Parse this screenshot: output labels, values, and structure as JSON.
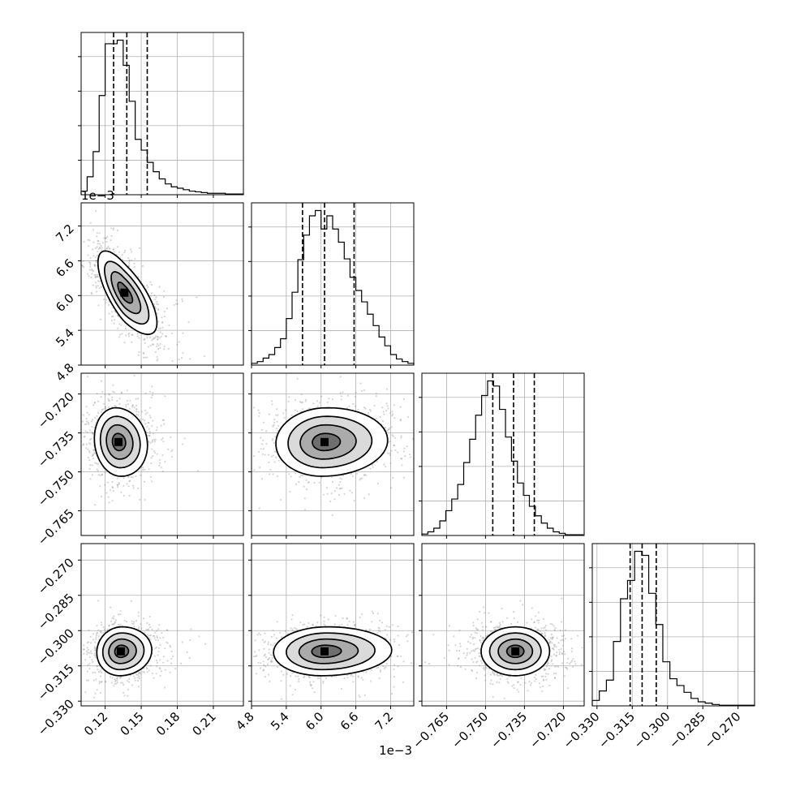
{
  "chart_data": {
    "type": "corner",
    "grid": true,
    "params": [
      {
        "index": 0,
        "range": [
          0.1,
          0.235
        ],
        "ticks": [
          0.12,
          0.15,
          0.18,
          0.21
        ],
        "tick_labels": [
          "0.12",
          "0.15",
          "0.18",
          "0.21"
        ],
        "quantiles": [
          0.127,
          0.138,
          0.155
        ],
        "offset_label": ""
      },
      {
        "index": 1,
        "range": [
          4.8,
          7.6
        ],
        "ticks": [
          4.8,
          5.4,
          6.0,
          6.6,
          7.2
        ],
        "tick_labels": [
          "4.8",
          "5.4",
          "6.0",
          "6.6",
          "7.2"
        ],
        "quantiles": [
          5.68,
          6.06,
          6.57
        ],
        "offset_label": "1e−3"
      },
      {
        "index": 2,
        "range": [
          -0.7745,
          -0.712
        ],
        "ticks": [
          -0.765,
          -0.75,
          -0.735,
          -0.72
        ],
        "tick_labels": [
          "−0.765",
          "−0.750",
          "−0.735",
          "−0.720"
        ],
        "quantiles": [
          -0.7472,
          -0.7392,
          -0.7312
        ],
        "offset_label": ""
      },
      {
        "index": 3,
        "range": [
          -0.332,
          -0.263
        ],
        "ticks": [
          -0.33,
          -0.315,
          -0.3,
          -0.285,
          -0.27
        ],
        "tick_labels": [
          "−0.330",
          "−0.315",
          "−0.300",
          "−0.285",
          "−0.270"
        ],
        "quantiles": [
          -0.3159,
          -0.3108,
          -0.3048
        ],
        "offset_label": ""
      }
    ],
    "histograms": [
      {
        "param": 0,
        "bin_edges": [
          0.1,
          0.105,
          0.11,
          0.115,
          0.12,
          0.125,
          0.13,
          0.135,
          0.14,
          0.145,
          0.15,
          0.155,
          0.16,
          0.165,
          0.17,
          0.175,
          0.18,
          0.185,
          0.19,
          0.195,
          0.2,
          0.205,
          0.21,
          0.215,
          0.22,
          0.225,
          0.23,
          0.235
        ],
        "counts": [
          5,
          25,
          60,
          138,
          210,
          210,
          215,
          180,
          130,
          77,
          62,
          45,
          32,
          22,
          15,
          11,
          9,
          7,
          5,
          4,
          3,
          2,
          2,
          2,
          1,
          1,
          1
        ]
      },
      {
        "param": 1,
        "bin_edges": [
          4.8,
          4.9,
          5.0,
          5.1,
          5.2,
          5.3,
          5.4,
          5.5,
          5.6,
          5.7,
          5.8,
          5.9,
          6.0,
          6.1,
          6.2,
          6.3,
          6.4,
          6.5,
          6.6,
          6.7,
          6.8,
          6.9,
          7.0,
          7.1,
          7.2,
          7.3,
          7.4,
          7.5,
          7.6
        ],
        "counts": [
          2,
          4,
          8,
          12,
          20,
          30,
          53,
          83,
          120,
          148,
          170,
          176,
          155,
          170,
          155,
          140,
          121,
          100,
          85,
          72,
          58,
          45,
          32,
          22,
          12,
          7,
          4,
          2
        ]
      },
      {
        "param": 2,
        "bin_edges": [
          -0.7745,
          -0.7722,
          -0.7699,
          -0.7676,
          -0.7653,
          -0.763,
          -0.7607,
          -0.7584,
          -0.7561,
          -0.7538,
          -0.7515,
          -0.7492,
          -0.7469,
          -0.7446,
          -0.7423,
          -0.74,
          -0.7377,
          -0.7354,
          -0.7331,
          -0.7308,
          -0.7285,
          -0.7262,
          -0.7239,
          -0.7216,
          -0.7193,
          -0.717,
          -0.7147,
          -0.7124
        ],
        "counts": [
          2,
          5,
          10,
          20,
          34,
          50,
          70,
          100,
          132,
          165,
          192,
          212,
          205,
          173,
          135,
          102,
          72,
          55,
          40,
          27,
          17,
          10,
          5,
          3,
          1,
          1,
          1
        ]
      },
      {
        "param": 3,
        "bin_edges": [
          -0.332,
          -0.329,
          -0.326,
          -0.323,
          -0.32,
          -0.317,
          -0.314,
          -0.311,
          -0.308,
          -0.305,
          -0.302,
          -0.299,
          -0.296,
          -0.293,
          -0.29,
          -0.287,
          -0.284,
          -0.281,
          -0.278,
          -0.275,
          -0.272,
          -0.269,
          -0.266,
          -0.263
        ],
        "counts": [
          8,
          22,
          38,
          95,
          158,
          185,
          228,
          222,
          166,
          120,
          65,
          40,
          30,
          20,
          11,
          6,
          4,
          2,
          1,
          1,
          1,
          1,
          1
        ]
      }
    ],
    "joint": [
      {
        "x": 0,
        "y": 1,
        "center": [
          0.136,
          6.05
        ],
        "sd": [
          0.011,
          0.36
        ],
        "rho": -0.72,
        "skew_x": 0.009
      },
      {
        "x": 0,
        "y": 2,
        "center": [
          0.131,
          -0.7385
        ],
        "sd": [
          0.01,
          0.0066
        ],
        "rho": -0.1,
        "skew_x": 0.006
      },
      {
        "x": 1,
        "y": 2,
        "center": [
          6.06,
          -0.7385
        ],
        "sd": [
          0.42,
          0.0066
        ],
        "rho": 0.05,
        "skew_x": 0.25
      },
      {
        "x": 0,
        "y": 3,
        "center": [
          0.133,
          -0.3088
        ],
        "sd": [
          0.01,
          0.0052
        ],
        "rho": 0.05,
        "skew_x": 0.006
      },
      {
        "x": 1,
        "y": 3,
        "center": [
          6.06,
          -0.3088
        ],
        "sd": [
          0.44,
          0.0052
        ],
        "rho": 0.05,
        "skew_x": 0.28
      },
      {
        "x": 2,
        "y": 3,
        "center": [
          -0.7385,
          -0.3088
        ],
        "sd": [
          0.0066,
          0.0052
        ],
        "rho": 0.0,
        "skew_x": 0.0
      }
    ],
    "contour_levels": [
      0.5,
      1.0,
      1.5,
      2.0
    ]
  }
}
